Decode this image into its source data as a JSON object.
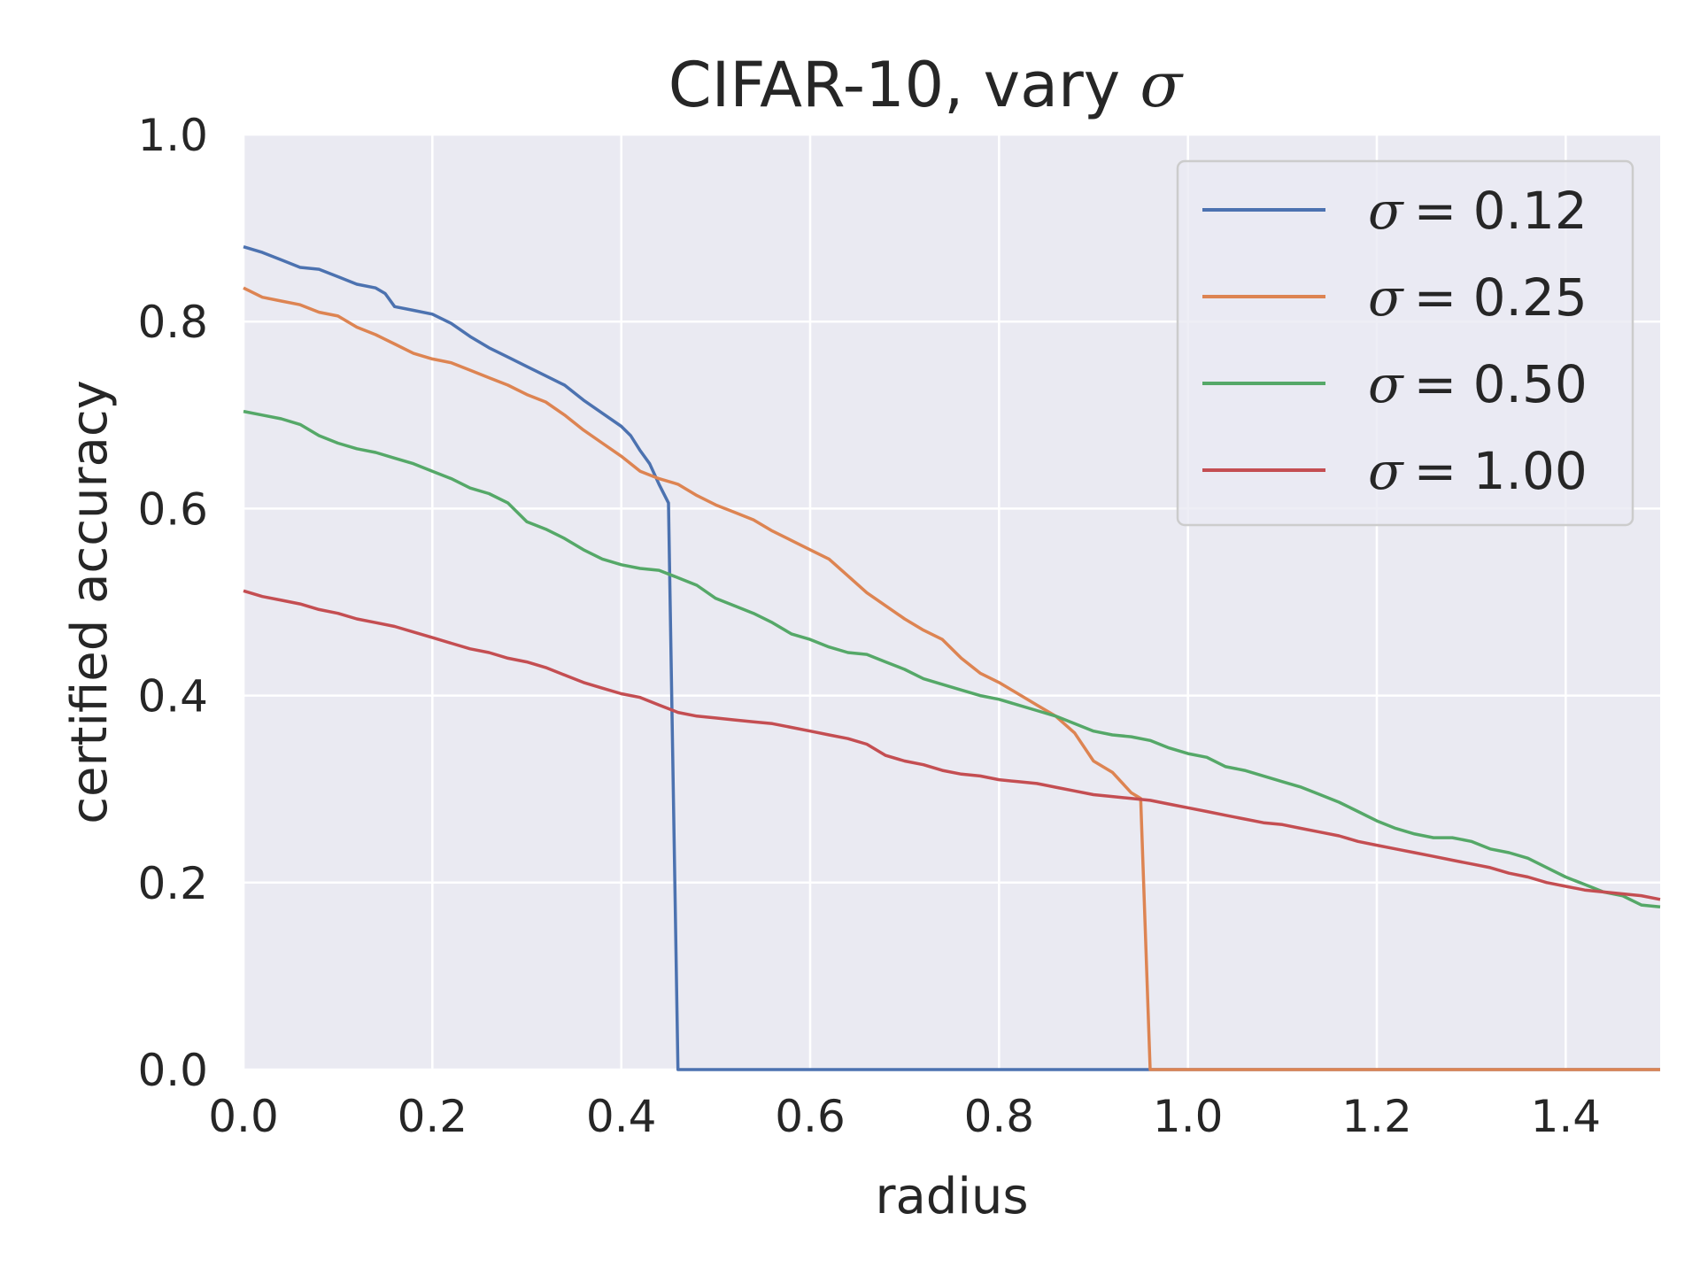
{
  "chart_data": {
    "type": "line",
    "title": "CIFAR-10, vary σ",
    "xlabel": "radius",
    "ylabel": "certified accuracy",
    "xlim": [
      0,
      1.5
    ],
    "ylim": [
      0,
      1.0
    ],
    "xticks": [
      "0.0",
      "0.2",
      "0.4",
      "0.6",
      "0.8",
      "1.0",
      "1.2",
      "1.4"
    ],
    "yticks": [
      "0.0",
      "0.2",
      "0.4",
      "0.6",
      "0.8",
      "1.0"
    ],
    "grid": true,
    "legend_position": "top-right",
    "background": "#eaeaf2",
    "series": [
      {
        "name": "σ = 0.12",
        "sigma_symbol": "σ",
        "legend_value": "= 0.12",
        "color": "#4c72b0",
        "points": [
          [
            0.0,
            0.88
          ],
          [
            0.02,
            0.874
          ],
          [
            0.04,
            0.866
          ],
          [
            0.06,
            0.858
          ],
          [
            0.08,
            0.856
          ],
          [
            0.1,
            0.848
          ],
          [
            0.12,
            0.84
          ],
          [
            0.14,
            0.836
          ],
          [
            0.15,
            0.83
          ],
          [
            0.16,
            0.816
          ],
          [
            0.18,
            0.812
          ],
          [
            0.2,
            0.808
          ],
          [
            0.22,
            0.798
          ],
          [
            0.24,
            0.784
          ],
          [
            0.26,
            0.772
          ],
          [
            0.28,
            0.762
          ],
          [
            0.3,
            0.752
          ],
          [
            0.32,
            0.742
          ],
          [
            0.34,
            0.732
          ],
          [
            0.36,
            0.716
          ],
          [
            0.38,
            0.702
          ],
          [
            0.4,
            0.688
          ],
          [
            0.41,
            0.678
          ],
          [
            0.42,
            0.662
          ],
          [
            0.43,
            0.648
          ],
          [
            0.44,
            0.626
          ],
          [
            0.45,
            0.606
          ],
          [
            0.46,
            0.0
          ],
          [
            1.5,
            0.0
          ]
        ]
      },
      {
        "name": "σ = 0.25",
        "sigma_symbol": "σ",
        "legend_value": "= 0.25",
        "color": "#dd8452",
        "points": [
          [
            0.0,
            0.836
          ],
          [
            0.02,
            0.826
          ],
          [
            0.04,
            0.822
          ],
          [
            0.06,
            0.818
          ],
          [
            0.08,
            0.81
          ],
          [
            0.1,
            0.806
          ],
          [
            0.12,
            0.794
          ],
          [
            0.14,
            0.786
          ],
          [
            0.16,
            0.776
          ],
          [
            0.18,
            0.766
          ],
          [
            0.2,
            0.76
          ],
          [
            0.22,
            0.756
          ],
          [
            0.24,
            0.748
          ],
          [
            0.26,
            0.74
          ],
          [
            0.28,
            0.732
          ],
          [
            0.3,
            0.722
          ],
          [
            0.32,
            0.714
          ],
          [
            0.34,
            0.7
          ],
          [
            0.36,
            0.684
          ],
          [
            0.38,
            0.67
          ],
          [
            0.4,
            0.656
          ],
          [
            0.42,
            0.64
          ],
          [
            0.44,
            0.632
          ],
          [
            0.46,
            0.626
          ],
          [
            0.48,
            0.614
          ],
          [
            0.5,
            0.604
          ],
          [
            0.52,
            0.596
          ],
          [
            0.54,
            0.588
          ],
          [
            0.56,
            0.576
          ],
          [
            0.58,
            0.566
          ],
          [
            0.6,
            0.556
          ],
          [
            0.62,
            0.546
          ],
          [
            0.64,
            0.528
          ],
          [
            0.66,
            0.51
          ],
          [
            0.68,
            0.496
          ],
          [
            0.7,
            0.482
          ],
          [
            0.72,
            0.47
          ],
          [
            0.74,
            0.46
          ],
          [
            0.76,
            0.44
          ],
          [
            0.78,
            0.424
          ],
          [
            0.8,
            0.414
          ],
          [
            0.82,
            0.402
          ],
          [
            0.84,
            0.39
          ],
          [
            0.86,
            0.378
          ],
          [
            0.88,
            0.36
          ],
          [
            0.9,
            0.33
          ],
          [
            0.92,
            0.318
          ],
          [
            0.94,
            0.296
          ],
          [
            0.95,
            0.29
          ],
          [
            0.96,
            0.0
          ],
          [
            1.5,
            0.0
          ]
        ]
      },
      {
        "name": "σ = 0.50",
        "sigma_symbol": "σ",
        "legend_value": "= 0.50",
        "color": "#55a868",
        "points": [
          [
            0.0,
            0.704
          ],
          [
            0.02,
            0.7
          ],
          [
            0.04,
            0.696
          ],
          [
            0.06,
            0.69
          ],
          [
            0.08,
            0.678
          ],
          [
            0.1,
            0.67
          ],
          [
            0.12,
            0.664
          ],
          [
            0.14,
            0.66
          ],
          [
            0.16,
            0.654
          ],
          [
            0.18,
            0.648
          ],
          [
            0.2,
            0.64
          ],
          [
            0.22,
            0.632
          ],
          [
            0.24,
            0.622
          ],
          [
            0.26,
            0.616
          ],
          [
            0.28,
            0.606
          ],
          [
            0.3,
            0.586
          ],
          [
            0.32,
            0.578
          ],
          [
            0.34,
            0.568
          ],
          [
            0.36,
            0.556
          ],
          [
            0.38,
            0.546
          ],
          [
            0.4,
            0.54
          ],
          [
            0.42,
            0.536
          ],
          [
            0.44,
            0.534
          ],
          [
            0.46,
            0.526
          ],
          [
            0.48,
            0.518
          ],
          [
            0.5,
            0.504
          ],
          [
            0.52,
            0.496
          ],
          [
            0.54,
            0.488
          ],
          [
            0.56,
            0.478
          ],
          [
            0.58,
            0.466
          ],
          [
            0.6,
            0.46
          ],
          [
            0.62,
            0.452
          ],
          [
            0.64,
            0.446
          ],
          [
            0.66,
            0.444
          ],
          [
            0.68,
            0.436
          ],
          [
            0.7,
            0.428
          ],
          [
            0.72,
            0.418
          ],
          [
            0.74,
            0.412
          ],
          [
            0.76,
            0.406
          ],
          [
            0.78,
            0.4
          ],
          [
            0.8,
            0.396
          ],
          [
            0.82,
            0.39
          ],
          [
            0.84,
            0.384
          ],
          [
            0.86,
            0.378
          ],
          [
            0.88,
            0.37
          ],
          [
            0.9,
            0.362
          ],
          [
            0.92,
            0.358
          ],
          [
            0.94,
            0.356
          ],
          [
            0.96,
            0.352
          ],
          [
            0.98,
            0.344
          ],
          [
            1.0,
            0.338
          ],
          [
            1.02,
            0.334
          ],
          [
            1.04,
            0.324
          ],
          [
            1.06,
            0.32
          ],
          [
            1.08,
            0.314
          ],
          [
            1.1,
            0.308
          ],
          [
            1.12,
            0.302
          ],
          [
            1.14,
            0.294
          ],
          [
            1.16,
            0.286
          ],
          [
            1.18,
            0.276
          ],
          [
            1.2,
            0.266
          ],
          [
            1.22,
            0.258
          ],
          [
            1.24,
            0.252
          ],
          [
            1.26,
            0.248
          ],
          [
            1.28,
            0.248
          ],
          [
            1.3,
            0.244
          ],
          [
            1.32,
            0.236
          ],
          [
            1.34,
            0.232
          ],
          [
            1.36,
            0.226
          ],
          [
            1.38,
            0.216
          ],
          [
            1.4,
            0.206
          ],
          [
            1.42,
            0.198
          ],
          [
            1.44,
            0.19
          ],
          [
            1.46,
            0.186
          ],
          [
            1.48,
            0.176
          ],
          [
            1.5,
            0.174
          ]
        ]
      },
      {
        "name": "σ = 1.00",
        "sigma_symbol": "σ",
        "legend_value": "= 1.00",
        "color": "#c44e52",
        "points": [
          [
            0.0,
            0.512
          ],
          [
            0.02,
            0.506
          ],
          [
            0.04,
            0.502
          ],
          [
            0.06,
            0.498
          ],
          [
            0.08,
            0.492
          ],
          [
            0.1,
            0.488
          ],
          [
            0.12,
            0.482
          ],
          [
            0.14,
            0.478
          ],
          [
            0.16,
            0.474
          ],
          [
            0.18,
            0.468
          ],
          [
            0.2,
            0.462
          ],
          [
            0.22,
            0.456
          ],
          [
            0.24,
            0.45
          ],
          [
            0.26,
            0.446
          ],
          [
            0.28,
            0.44
          ],
          [
            0.3,
            0.436
          ],
          [
            0.32,
            0.43
          ],
          [
            0.34,
            0.422
          ],
          [
            0.36,
            0.414
          ],
          [
            0.38,
            0.408
          ],
          [
            0.4,
            0.402
          ],
          [
            0.42,
            0.398
          ],
          [
            0.44,
            0.39
          ],
          [
            0.46,
            0.382
          ],
          [
            0.48,
            0.378
          ],
          [
            0.5,
            0.376
          ],
          [
            0.52,
            0.374
          ],
          [
            0.54,
            0.372
          ],
          [
            0.56,
            0.37
          ],
          [
            0.58,
            0.366
          ],
          [
            0.6,
            0.362
          ],
          [
            0.62,
            0.358
          ],
          [
            0.64,
            0.354
          ],
          [
            0.66,
            0.348
          ],
          [
            0.68,
            0.336
          ],
          [
            0.7,
            0.33
          ],
          [
            0.72,
            0.326
          ],
          [
            0.74,
            0.32
          ],
          [
            0.76,
            0.316
          ],
          [
            0.78,
            0.314
          ],
          [
            0.8,
            0.31
          ],
          [
            0.82,
            0.308
          ],
          [
            0.84,
            0.306
          ],
          [
            0.86,
            0.302
          ],
          [
            0.88,
            0.298
          ],
          [
            0.9,
            0.294
          ],
          [
            0.92,
            0.292
          ],
          [
            0.94,
            0.29
          ],
          [
            0.96,
            0.288
          ],
          [
            0.98,
            0.284
          ],
          [
            1.0,
            0.28
          ],
          [
            1.02,
            0.276
          ],
          [
            1.04,
            0.272
          ],
          [
            1.06,
            0.268
          ],
          [
            1.08,
            0.264
          ],
          [
            1.1,
            0.262
          ],
          [
            1.12,
            0.258
          ],
          [
            1.14,
            0.254
          ],
          [
            1.16,
            0.25
          ],
          [
            1.18,
            0.244
          ],
          [
            1.2,
            0.24
          ],
          [
            1.22,
            0.236
          ],
          [
            1.24,
            0.232
          ],
          [
            1.26,
            0.228
          ],
          [
            1.28,
            0.224
          ],
          [
            1.3,
            0.22
          ],
          [
            1.32,
            0.216
          ],
          [
            1.34,
            0.21
          ],
          [
            1.36,
            0.206
          ],
          [
            1.38,
            0.2
          ],
          [
            1.4,
            0.196
          ],
          [
            1.42,
            0.192
          ],
          [
            1.44,
            0.19
          ],
          [
            1.46,
            0.188
          ],
          [
            1.48,
            0.186
          ],
          [
            1.5,
            0.182
          ]
        ]
      }
    ]
  }
}
